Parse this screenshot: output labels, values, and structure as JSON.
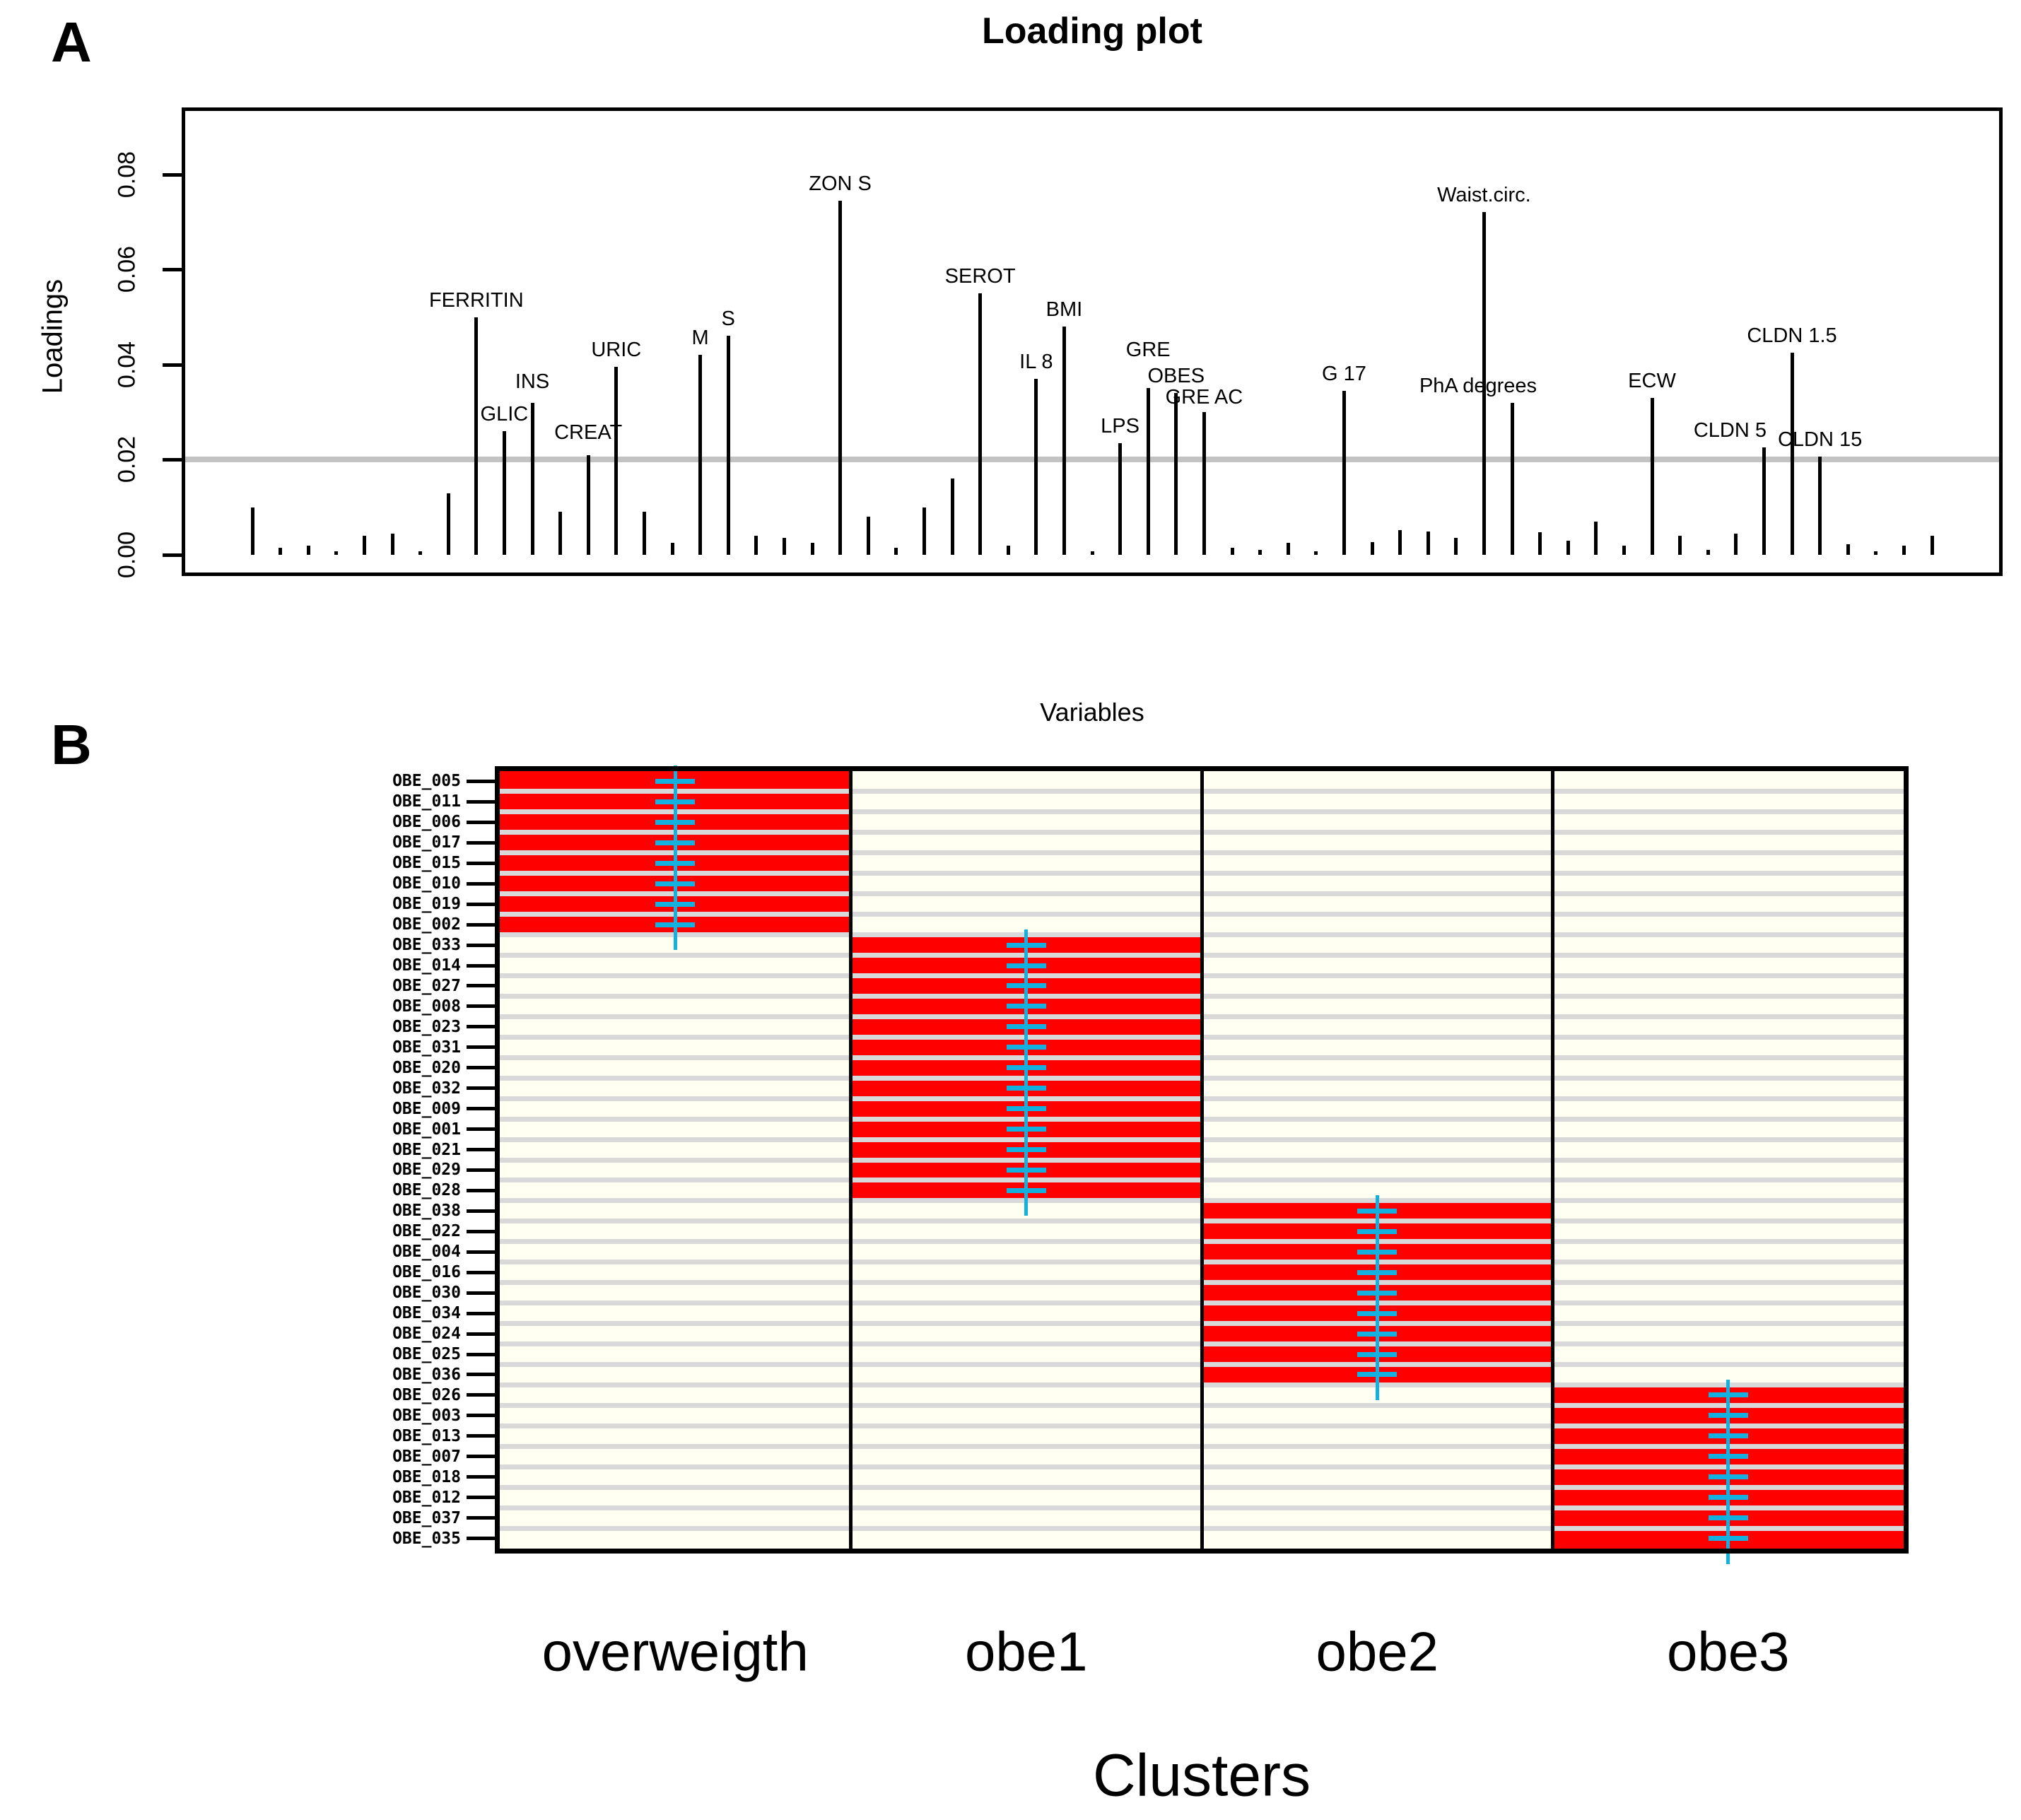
{
  "panel_a": {
    "tag": "A"
  },
  "panel_b": {
    "tag": "B"
  },
  "colors": {
    "bar": "#000000",
    "threshold_line": "#C3C3C3",
    "cell_active": "#FF0000",
    "cell_inactive": "#FFFFF2",
    "row_separator": "#D9D9D9",
    "marker": "#12B1E0",
    "frame": "#000000"
  },
  "chart_data": [
    {
      "type": "bar",
      "title": "Loading plot",
      "ylabel": "Loadings",
      "xlabel": "Variables",
      "ylim": [
        0,
        0.093
      ],
      "ytick_values": [
        0.0,
        0.02,
        0.04,
        0.06,
        0.08
      ],
      "ytick_labels": [
        "0.00",
        "0.02",
        "0.04",
        "0.06",
        "0.08"
      ],
      "threshold": 0.02,
      "grid": false,
      "legend": "none",
      "bars": [
        {
          "v": 0.01
        },
        {
          "v": 0.0015
        },
        {
          "v": 0.002
        },
        {
          "v": 0.0008
        },
        {
          "v": 0.004
        },
        {
          "v": 0.0045
        },
        {
          "v": 0.0008
        },
        {
          "v": 0.013
        },
        {
          "v": 0.05,
          "label": "FERRITIN"
        },
        {
          "v": 0.026,
          "label": "GLIC"
        },
        {
          "v": 0.032,
          "label": "INS",
          "lg": 14
        },
        {
          "v": 0.009
        },
        {
          "v": 0.021,
          "label": "CREAT",
          "lg": 16
        },
        {
          "v": 0.0395,
          "label": "URIC"
        },
        {
          "v": 0.009
        },
        {
          "v": 0.0025
        },
        {
          "v": 0.042,
          "label": "M"
        },
        {
          "v": 0.046,
          "label": "S"
        },
        {
          "v": 0.004
        },
        {
          "v": 0.0035
        },
        {
          "v": 0.0025
        },
        {
          "v": 0.0745,
          "label": "ZON S"
        },
        {
          "v": 0.008
        },
        {
          "v": 0.0015
        },
        {
          "v": 0.01
        },
        {
          "v": 0.016
        },
        {
          "v": 0.055,
          "label": "SEROT"
        },
        {
          "v": 0.002
        },
        {
          "v": 0.037,
          "label": "IL 8"
        },
        {
          "v": 0.048,
          "label": "BMI"
        },
        {
          "v": 0.0008
        },
        {
          "v": 0.0235,
          "label": "LPS"
        },
        {
          "v": 0.035,
          "label": "GRE",
          "lg": 38
        },
        {
          "v": 0.034,
          "label": "OBES",
          "lg": 8
        },
        {
          "v": 0.03,
          "label": "GRE AC",
          "lg": 5
        },
        {
          "v": 0.0015
        },
        {
          "v": 0.001
        },
        {
          "v": 0.0025
        },
        {
          "v": 0.0008
        },
        {
          "v": 0.0345,
          "label": "G 17"
        },
        {
          "v": 0.0027
        },
        {
          "v": 0.0052
        },
        {
          "v": 0.0049
        },
        {
          "v": 0.0036
        },
        {
          "v": 0.072,
          "label": "Waist.circ."
        },
        {
          "v": 0.032,
          "label": "PhA degrees",
          "lx": -48
        },
        {
          "v": 0.0047
        },
        {
          "v": 0.0029
        },
        {
          "v": 0.007
        },
        {
          "v": 0.002
        },
        {
          "v": 0.033,
          "label": "ECW"
        },
        {
          "v": 0.004
        },
        {
          "v": 0.001
        },
        {
          "v": 0.0045
        },
        {
          "v": 0.0226,
          "label": "CLDN 5",
          "lx": -48
        },
        {
          "v": 0.0425,
          "label": "CLDN 1.5"
        },
        {
          "v": 0.0207,
          "label": "CLDN 15"
        },
        {
          "v": 0.0022
        },
        {
          "v": 0.0008
        },
        {
          "v": 0.002
        },
        {
          "v": 0.004
        }
      ]
    },
    {
      "type": "heatmap",
      "xlabel": "Clusters",
      "rows": [
        "OBE_005",
        "OBE_011",
        "OBE_006",
        "OBE_017",
        "OBE_015",
        "OBE_010",
        "OBE_019",
        "OBE_002",
        "OBE_033",
        "OBE_014",
        "OBE_027",
        "OBE_008",
        "OBE_023",
        "OBE_031",
        "OBE_020",
        "OBE_032",
        "OBE_009",
        "OBE_001",
        "OBE_021",
        "OBE_029",
        "OBE_028",
        "OBE_038",
        "OBE_022",
        "OBE_004",
        "OBE_016",
        "OBE_030",
        "OBE_034",
        "OBE_024",
        "OBE_025",
        "OBE_036",
        "OBE_026",
        "OBE_003",
        "OBE_013",
        "OBE_007",
        "OBE_018",
        "OBE_012",
        "OBE_037",
        "OBE_035"
      ],
      "clusters": [
        {
          "label": "overweigth",
          "row_start": 0,
          "row_end": 7
        },
        {
          "label": "obe1",
          "row_start": 8,
          "row_end": 20
        },
        {
          "label": "obe2",
          "row_start": 21,
          "row_end": 29
        },
        {
          "label": "obe3",
          "row_start": 30,
          "row_end": 37
        }
      ]
    }
  ]
}
